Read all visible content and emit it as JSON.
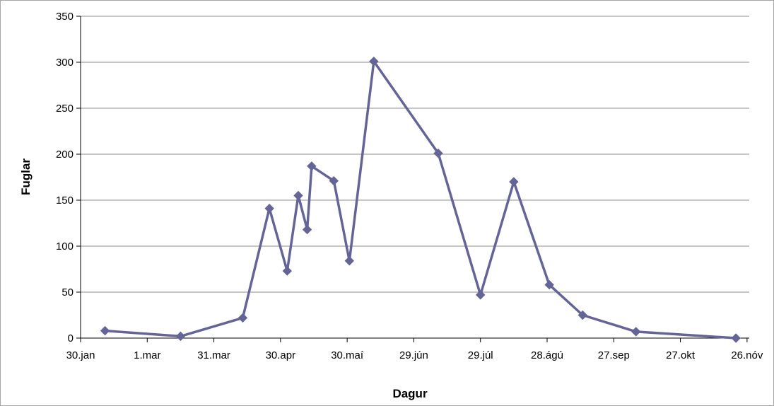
{
  "chart_data": {
    "type": "line",
    "title": "",
    "xlabel": "Dagur",
    "ylabel": "Fuglar",
    "x_tick_labels": [
      "30.jan",
      "1.mar",
      "31.mar",
      "30.apr",
      "30.maí",
      "29.jún",
      "29.júl",
      "28.ágú",
      "27.sep",
      "27.okt",
      "26.nóv"
    ],
    "y_tick_labels": [
      "0",
      "50",
      "100",
      "150",
      "200",
      "250",
      "300",
      "350"
    ],
    "ylim": [
      0,
      350
    ],
    "xlim": [
      "2000-01-30",
      "2000-11-26"
    ],
    "grid": "horizontal",
    "legend": "none",
    "colors": {
      "series": "#646496",
      "grid": "#8c8c8c",
      "axis": "#000000",
      "frame": "#a6a6a6"
    },
    "series": [
      {
        "x": [
          "2000-02-10",
          "2000-03-15",
          "2000-04-12",
          "2000-04-24",
          "2000-05-02",
          "2000-05-07",
          "2000-05-11",
          "2000-05-13",
          "2000-05-23",
          "2000-05-30",
          "2000-06-10",
          "2000-07-09",
          "2000-07-28",
          "2000-08-12",
          "2000-08-28",
          "2000-09-12",
          "2000-10-06",
          "2000-11-20"
        ],
        "values": [
          8,
          2,
          22,
          141,
          73,
          155,
          118,
          187,
          171,
          84,
          301,
          201,
          47,
          170,
          58,
          25,
          7,
          0
        ]
      }
    ]
  }
}
